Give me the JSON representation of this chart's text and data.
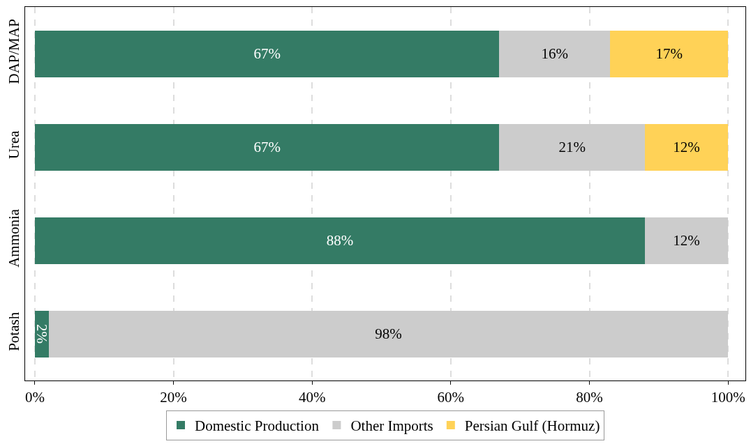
{
  "chart_data": {
    "type": "bar",
    "orientation": "horizontal",
    "stacked": true,
    "categories": [
      "DAP/MAP",
      "Urea",
      "Ammonia",
      "Potash"
    ],
    "series": [
      {
        "name": "Domestic Production",
        "color": "#347b65",
        "values": [
          67,
          67,
          88,
          2
        ],
        "value_labels": [
          "67%",
          "67%",
          "88%",
          "2%"
        ]
      },
      {
        "name": "Other Imports",
        "color": "#cccccc",
        "values": [
          16,
          21,
          12,
          98
        ],
        "value_labels": [
          "16%",
          "21%",
          "12%",
          "98%"
        ]
      },
      {
        "name": "Persian Gulf (Hormuz)",
        "color": "#ffd257",
        "values": [
          17,
          12,
          null,
          null
        ],
        "value_labels": [
          "17%",
          "12%",
          null,
          null
        ]
      }
    ],
    "xlim": [
      -1.4,
      102.5
    ],
    "xticks": [
      {
        "value": 0,
        "label": "0%"
      },
      {
        "value": 20,
        "label": "20%"
      },
      {
        "value": 40,
        "label": "40%"
      },
      {
        "value": 60,
        "label": "60%"
      },
      {
        "value": 80,
        "label": "80%"
      },
      {
        "value": 100,
        "label": "100%"
      }
    ],
    "grid": "x",
    "legend": "bottom"
  }
}
